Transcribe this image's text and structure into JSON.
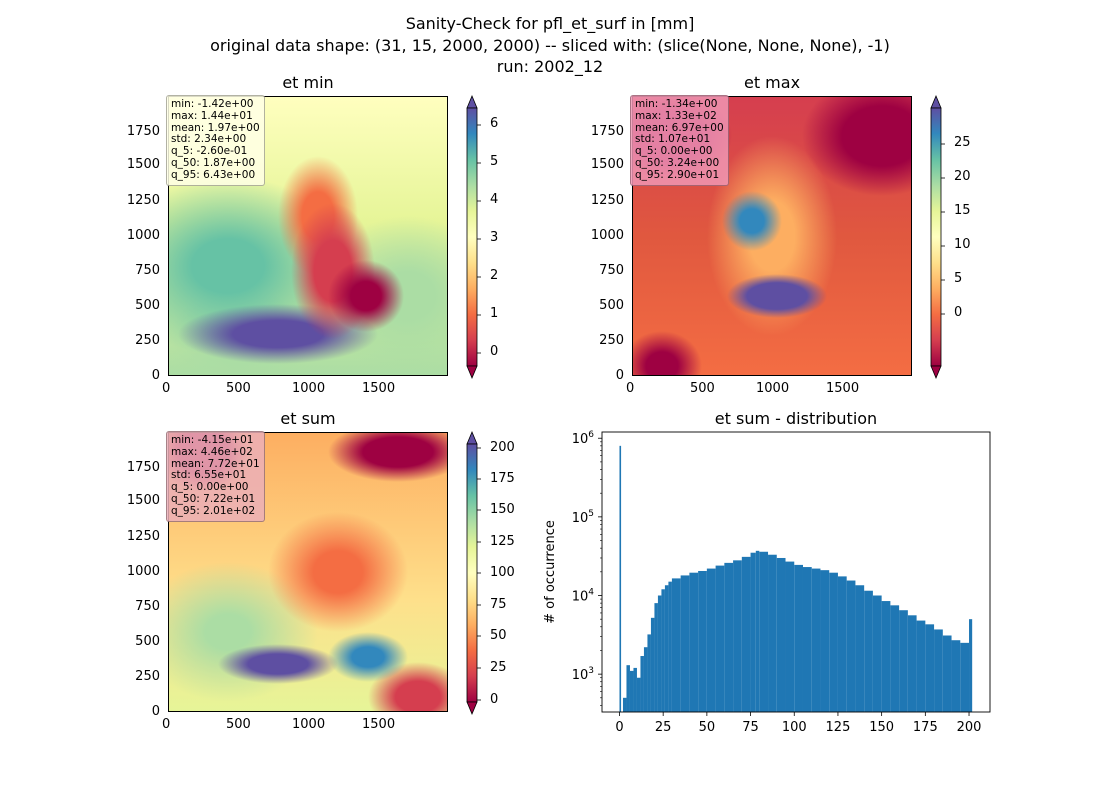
{
  "figure": {
    "title_line1": "Sanity-Check for pfl_et_surf in [mm]",
    "title_line2": "original data shape: (31, 15, 2000, 2000) -- sliced with: (slice(None, None, None), -1)",
    "title_line3": "run: 2002_12"
  },
  "colormap": [
    "#9e0142",
    "#d53e4f",
    "#f46d43",
    "#fdae61",
    "#fee08b",
    "#ffffbf",
    "#e6f598",
    "#abdda4",
    "#66c2a5",
    "#3288bd",
    "#5e4fa2"
  ],
  "panels": {
    "min": {
      "title": "et min",
      "xticks": [
        "0",
        "500",
        "1000",
        "1500"
      ],
      "yticks": [
        "1750",
        "1500",
        "1250",
        "1000",
        "750",
        "500",
        "250",
        "0"
      ],
      "cbar_ticks": [
        "6",
        "5",
        "4",
        "3",
        "2",
        "1",
        "0"
      ],
      "stats": {
        "min": "min: -1.42e+00",
        "max": "max: 1.44e+01",
        "mean": "mean: 1.97e+00",
        "std": "std: 2.34e+00",
        "q5": "q_5: -2.60e-01",
        "q50": "q_50: 1.87e+00",
        "q95": "q_95: 6.43e+00"
      }
    },
    "max": {
      "title": "et max",
      "xticks": [
        "0",
        "500",
        "1000",
        "1500"
      ],
      "yticks": [
        "1750",
        "1500",
        "1250",
        "1000",
        "750",
        "500",
        "250",
        "0"
      ],
      "cbar_ticks": [
        "25",
        "20",
        "15",
        "10",
        "5",
        "0"
      ],
      "stats": {
        "min": "min: -1.34e+00",
        "max": "max: 1.33e+02",
        "mean": "mean: 6.97e+00",
        "std": "std: 1.07e+01",
        "q5": "q_5: 0.00e+00",
        "q50": "q_50: 3.24e+00",
        "q95": "q_95: 2.90e+01"
      }
    },
    "sum": {
      "title": "et sum",
      "xticks": [
        "0",
        "500",
        "1000",
        "1500"
      ],
      "yticks": [
        "1750",
        "1500",
        "1250",
        "1000",
        "750",
        "500",
        "250",
        "0"
      ],
      "cbar_ticks": [
        "200",
        "175",
        "150",
        "125",
        "100",
        "75",
        "50",
        "25",
        "0"
      ],
      "stats": {
        "min": "min: -4.15e+01",
        "max": "max: 4.46e+02",
        "mean": "mean: 7.72e+01",
        "std": "std: 6.55e+01",
        "q5": "q_5: 0.00e+00",
        "q50": "q_50: 7.22e+01",
        "q95": "q_95: 2.01e+02"
      }
    }
  },
  "chart_data": [
    {
      "type": "heatmap",
      "title": "et min",
      "xlim": [
        0,
        2000
      ],
      "ylim": [
        0,
        2000
      ],
      "color_range": [
        -0.26,
        6.43
      ],
      "colorbar_extend": "both"
    },
    {
      "type": "heatmap",
      "title": "et max",
      "xlim": [
        0,
        2000
      ],
      "ylim": [
        0,
        2000
      ],
      "color_range": [
        0,
        29
      ],
      "colorbar_extend": "both"
    },
    {
      "type": "heatmap",
      "title": "et sum",
      "xlim": [
        0,
        2000
      ],
      "ylim": [
        0,
        2000
      ],
      "color_range": [
        0,
        201
      ],
      "colorbar_extend": "both"
    },
    {
      "type": "bar",
      "title": "et sum - distribution",
      "xlabel": "",
      "ylabel": "# of occurrence",
      "yscale": "log",
      "xlim": [
        -10,
        212
      ],
      "ylim": [
        330,
        1200000
      ],
      "xticks": [
        0,
        25,
        50,
        75,
        100,
        125,
        150,
        175,
        200
      ],
      "yticks": [
        "10^3",
        "10^4",
        "10^5",
        "10^6"
      ],
      "color": "#1f77b4",
      "bins": [
        0,
        2,
        4,
        6,
        8,
        10,
        12,
        14,
        16,
        18,
        20,
        22,
        24,
        26,
        28,
        30,
        35,
        40,
        45,
        50,
        55,
        60,
        65,
        70,
        75,
        78,
        80,
        85,
        90,
        95,
        100,
        105,
        110,
        115,
        120,
        125,
        130,
        135,
        140,
        145,
        150,
        155,
        160,
        165,
        170,
        175,
        180,
        185,
        190,
        195,
        200
      ],
      "values": [
        800000,
        500,
        1300,
        1100,
        1200,
        900,
        1700,
        2200,
        3200,
        5200,
        8000,
        10000,
        12000,
        13500,
        15000,
        16500,
        18000,
        19500,
        20500,
        22000,
        24000,
        26000,
        28000,
        31000,
        35000,
        37000,
        36000,
        33000,
        30000,
        27000,
        24500,
        23000,
        22000,
        21000,
        19500,
        17500,
        15500,
        13500,
        11500,
        10000,
        8500,
        7500,
        6500,
        5600,
        4800,
        4300,
        3700,
        3100,
        2700,
        2500,
        5000
      ]
    }
  ]
}
